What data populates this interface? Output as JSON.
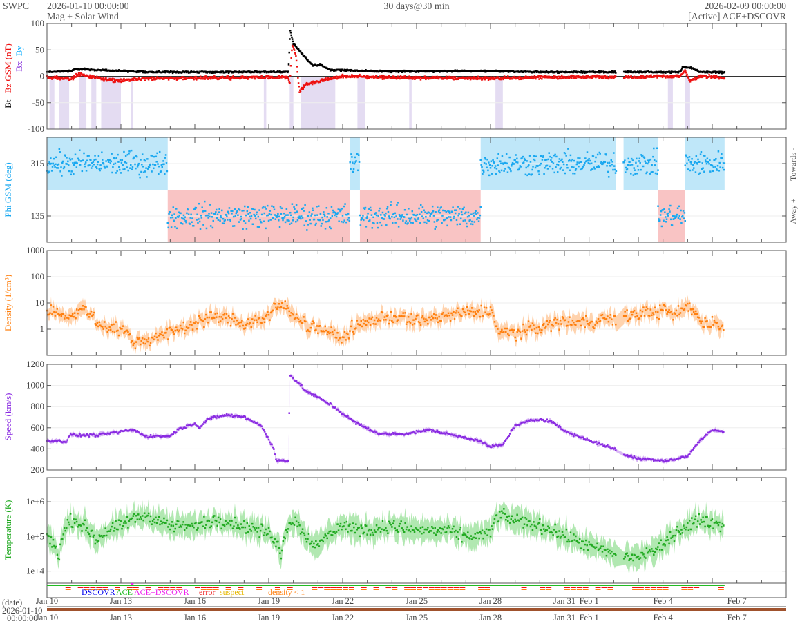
{
  "header": {
    "org": "SWPC",
    "start": "2026-01-10 00:00:00",
    "subtitle": "Mag + Solar Wind",
    "span": "30 days@30 min",
    "end": "2026-02-09 00:00:00",
    "source": "[Active] ACE+DSCOVR"
  },
  "colors": {
    "bt": "#000000",
    "bz": "#ee1111",
    "bx": "#8833dd",
    "by": "#1ab2ff",
    "phi": "#1aa8f0",
    "towards": "#bfe7f9",
    "away": "#f9c4c4",
    "density": "#ff7f0e",
    "density_band": "#ffc89a",
    "speed": "#8a2be2",
    "speed_band": "#cfa6f2",
    "temp": "#22aa22",
    "temp_band": "#9ee29e",
    "southward": "#ddd3ef"
  },
  "legend": {
    "dscovr": "DSCOVR",
    "ace": "ACE",
    "both": "ACE+DSCOVR",
    "error": "error",
    "suspect": "suspect",
    "low_density": "density < 1"
  },
  "date_label": {
    "caption": "(date)",
    "date": "2026-01-10",
    "time": "00:00:00"
  },
  "chart_data": [
    {
      "type": "line",
      "title": "Mag",
      "ylabel_parts": [
        "Bt",
        "Bz GSM (nT)",
        "Bx",
        "By"
      ],
      "ylim": [
        -100,
        100
      ],
      "yticks": [
        "100",
        "50",
        "0",
        "-50",
        "-100"
      ],
      "x_unit": "days since 2026-01-10",
      "series": [
        {
          "name": "Bt",
          "points": [
            [
              0,
              8
            ],
            [
              1,
              10
            ],
            [
              1.2,
              14
            ],
            [
              2,
              12
            ],
            [
              4,
              8
            ],
            [
              9.8,
              8
            ],
            [
              9.87,
              88
            ],
            [
              10.0,
              62
            ],
            [
              10.4,
              40
            ],
            [
              10.8,
              20
            ],
            [
              11.1,
              22
            ],
            [
              11.5,
              12
            ],
            [
              14,
              9
            ],
            [
              18,
              10
            ],
            [
              20,
              8
            ],
            [
              25.7,
              8
            ],
            [
              25.8,
              18
            ],
            [
              26.2,
              15
            ],
            [
              26.5,
              8
            ],
            [
              27.5,
              7
            ]
          ]
        },
        {
          "name": "Bz",
          "points": [
            [
              0,
              -2
            ],
            [
              1,
              -5
            ],
            [
              1.3,
              5
            ],
            [
              2,
              -4
            ],
            [
              3,
              -8
            ],
            [
              4,
              -4
            ],
            [
              9.8,
              -2
            ],
            [
              9.85,
              -15
            ],
            [
              9.95,
              60
            ],
            [
              10.1,
              40
            ],
            [
              10.25,
              -30
            ],
            [
              10.5,
              -15
            ],
            [
              11,
              -10
            ],
            [
              11.5,
              -5
            ],
            [
              12,
              0
            ],
            [
              14,
              -2
            ],
            [
              18,
              -4
            ],
            [
              20,
              -2
            ],
            [
              25.7,
              0
            ],
            [
              25.9,
              10
            ],
            [
              26.1,
              -10
            ],
            [
              26.5,
              0
            ],
            [
              27.5,
              -2
            ]
          ]
        }
      ],
      "southward_intervals": [
        [
          0.1,
          0.3
        ],
        [
          0.5,
          0.9
        ],
        [
          1.3,
          1.6
        ],
        [
          1.8,
          2.0
        ],
        [
          2.2,
          3.0
        ],
        [
          3.4,
          3.5
        ],
        [
          8.8,
          8.9
        ],
        [
          9.85,
          10.0
        ],
        [
          10.3,
          11.7
        ],
        [
          12.6,
          12.9
        ],
        [
          14.7,
          14.8
        ],
        [
          18.2,
          18.5
        ],
        [
          25.2,
          25.4
        ],
        [
          25.9,
          26.1
        ]
      ]
    },
    {
      "type": "scatter",
      "title": "Phi",
      "ylabel": "Phi GSM (deg)",
      "ylim": [
        45,
        405
      ],
      "yticks": [
        "315",
        "135"
      ],
      "right_labels": [
        "Towards -",
        "Away +"
      ],
      "sectors": [
        {
          "from": 0,
          "to": 4.9,
          "sector": "towards"
        },
        {
          "from": 4.9,
          "to": 10.3,
          "sector": "away"
        },
        {
          "from": 10.3,
          "to": 12.3,
          "sector": "away"
        },
        {
          "from": 12.3,
          "to": 12.7,
          "sector": "towards"
        },
        {
          "from": 12.7,
          "to": 17.6,
          "sector": "away"
        },
        {
          "from": 17.6,
          "to": 23.1,
          "sector": "towards"
        },
        {
          "from": 23.4,
          "to": 24.8,
          "sector": "towards"
        },
        {
          "from": 24.8,
          "to": 25.9,
          "sector": "away"
        },
        {
          "from": 25.9,
          "to": 27.5,
          "sector": "towards"
        }
      ]
    },
    {
      "type": "scatter",
      "title": "Density",
      "ylabel": "Density (1/cm³)",
      "yscale": "log",
      "ylim": [
        0.1,
        1000
      ],
      "yticks": [
        "1000",
        "100",
        "10",
        "1"
      ],
      "profile": [
        [
          0,
          5
        ],
        [
          1,
          3
        ],
        [
          1.5,
          6
        ],
        [
          2,
          1.5
        ],
        [
          3,
          1
        ],
        [
          3.5,
          0.3
        ],
        [
          4.5,
          0.5
        ],
        [
          5.5,
          1
        ],
        [
          6,
          2
        ],
        [
          7,
          3
        ],
        [
          8,
          1.5
        ],
        [
          9,
          3
        ],
        [
          9.5,
          8
        ],
        [
          10,
          4
        ],
        [
          10.5,
          1.5
        ],
        [
          11,
          1
        ],
        [
          12,
          0.4
        ],
        [
          13,
          2
        ],
        [
          14,
          3
        ],
        [
          15,
          2
        ],
        [
          16,
          3
        ],
        [
          17,
          4
        ],
        [
          18,
          5
        ],
        [
          18.3,
          0.8
        ],
        [
          19,
          0.7
        ],
        [
          20,
          1.2
        ],
        [
          21,
          2
        ],
        [
          22,
          2
        ],
        [
          23,
          2.5
        ],
        [
          23.5,
          3
        ],
        [
          24,
          4
        ],
        [
          25,
          5
        ],
        [
          25.5,
          3
        ],
        [
          26,
          8
        ],
        [
          26.5,
          2
        ],
        [
          27.5,
          1.2
        ]
      ]
    },
    {
      "type": "scatter",
      "title": "Speed",
      "ylabel": "Speed (km/s)",
      "ylim": [
        200,
        1200
      ],
      "yticks": [
        "1200",
        "1000",
        "800",
        "600",
        "400",
        "200"
      ],
      "profile": [
        [
          0,
          480
        ],
        [
          0.8,
          470
        ],
        [
          0.9,
          530
        ],
        [
          2,
          530
        ],
        [
          3,
          560
        ],
        [
          3.5,
          580
        ],
        [
          4,
          520
        ],
        [
          5,
          520
        ],
        [
          5.3,
          580
        ],
        [
          6,
          640
        ],
        [
          6.2,
          600
        ],
        [
          6.5,
          680
        ],
        [
          7.3,
          720
        ],
        [
          8,
          700
        ],
        [
          8.7,
          620
        ],
        [
          9.2,
          400
        ],
        [
          9.3,
          290
        ],
        [
          9.8,
          290
        ],
        [
          9.86,
          1100
        ],
        [
          10.5,
          950
        ],
        [
          11.5,
          820
        ],
        [
          12.5,
          650
        ],
        [
          13.5,
          540
        ],
        [
          14.5,
          540
        ],
        [
          15.5,
          580
        ],
        [
          16.5,
          530
        ],
        [
          17.5,
          480
        ],
        [
          18,
          420
        ],
        [
          18.5,
          440
        ],
        [
          19,
          620
        ],
        [
          19.5,
          660
        ],
        [
          20,
          680
        ],
        [
          20.5,
          660
        ],
        [
          21,
          570
        ],
        [
          22,
          480
        ],
        [
          23,
          400
        ],
        [
          23.5,
          340
        ],
        [
          24,
          310
        ],
        [
          24.5,
          300
        ],
        [
          25,
          290
        ],
        [
          25.5,
          300
        ],
        [
          26,
          330
        ],
        [
          26.5,
          480
        ],
        [
          27,
          580
        ],
        [
          27.5,
          560
        ]
      ]
    },
    {
      "type": "scatter",
      "title": "Temperature",
      "ylabel": "Temperature (K)",
      "yscale": "log",
      "ylim": [
        4500,
        5000000
      ],
      "yticks": [
        "1e+6",
        "1e+5",
        "1e+4"
      ],
      "profile": [
        [
          0,
          100000.0
        ],
        [
          0.5,
          20000.0
        ],
        [
          1,
          300000.0
        ],
        [
          2,
          80000.0
        ],
        [
          3,
          200000.0
        ],
        [
          4,
          400000.0
        ],
        [
          5,
          200000.0
        ],
        [
          6,
          200000.0
        ],
        [
          7,
          300000.0
        ],
        [
          8,
          200000.0
        ],
        [
          9,
          120000.0
        ],
        [
          9.5,
          30000.0
        ],
        [
          10,
          300000.0
        ],
        [
          10.5,
          100000.0
        ],
        [
          11,
          50000.0
        ],
        [
          12,
          200000.0
        ],
        [
          13,
          150000.0
        ],
        [
          14,
          200000.0
        ],
        [
          15,
          150000.0
        ],
        [
          16,
          150000.0
        ],
        [
          17,
          100000.0
        ],
        [
          18,
          120000.0
        ],
        [
          18.3,
          400000.0
        ],
        [
          19,
          300000.0
        ],
        [
          20,
          200000.0
        ],
        [
          21,
          100000.0
        ],
        [
          22,
          50000.0
        ],
        [
          23,
          30000.0
        ],
        [
          24,
          25000.0
        ],
        [
          25,
          50000.0
        ],
        [
          26,
          200000.0
        ],
        [
          26.5,
          300000.0
        ],
        [
          27.5,
          200000.0
        ]
      ]
    }
  ],
  "x_axis": {
    "labels": [
      {
        "day": 0,
        "text": "Jan 10"
      },
      {
        "day": 3,
        "text": "Jan 13"
      },
      {
        "day": 6,
        "text": "Jan 16"
      },
      {
        "day": 9,
        "text": "Jan 19"
      },
      {
        "day": 12,
        "text": "Jan 22"
      },
      {
        "day": 15,
        "text": "Jan 25"
      },
      {
        "day": 18,
        "text": "Jan 28"
      },
      {
        "day": 21,
        "text": "Jan 31"
      },
      {
        "day": 22,
        "text": "Feb 1"
      },
      {
        "day": 25,
        "text": "Feb 4"
      },
      {
        "day": 28,
        "text": "Feb 7"
      }
    ],
    "range_days": [
      0,
      30
    ]
  }
}
